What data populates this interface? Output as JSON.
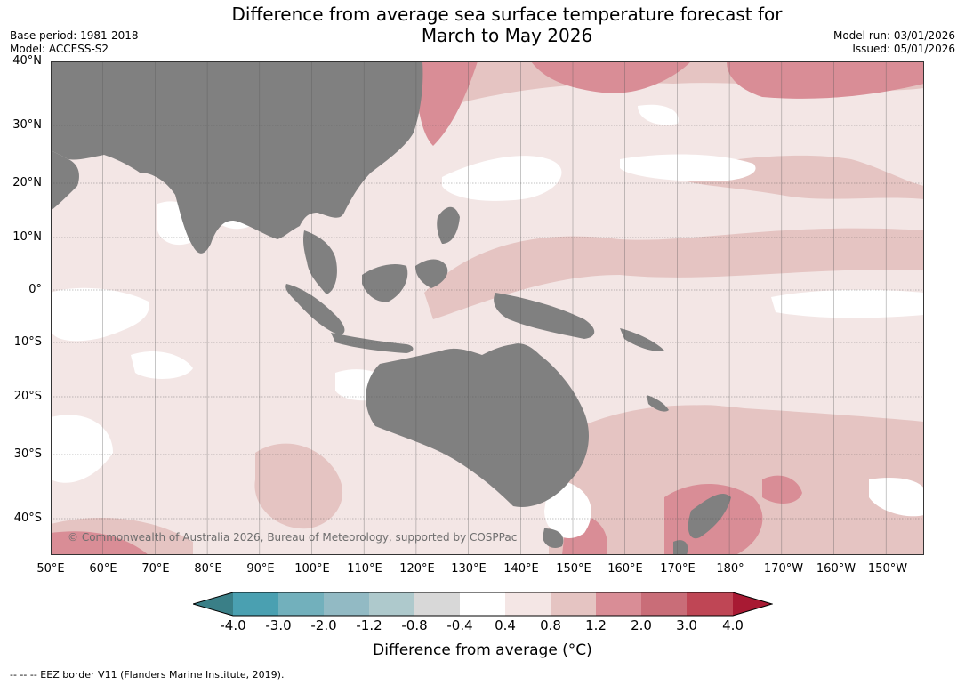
{
  "title_line1": "Difference from average sea surface temperature forecast for",
  "title_line2": "March to May 2026",
  "meta_left": {
    "base_period": "Base period: 1981-2018",
    "model": "Model: ACCESS-S2"
  },
  "meta_right": {
    "model_run": "Model run: 03/01/2026",
    "issued": "Issued: 05/01/2026"
  },
  "lat_labels": [
    "40°N",
    "30°N",
    "20°N",
    "10°N",
    "0°",
    "10°S",
    "20°S",
    "30°S",
    "40°S"
  ],
  "lon_labels": [
    "50°E",
    "60°E",
    "70°E",
    "80°E",
    "90°E",
    "100°E",
    "110°E",
    "120°E",
    "130°E",
    "140°E",
    "150°E",
    "160°E",
    "170°E",
    "180°",
    "170°W",
    "160°W",
    "150°W"
  ],
  "copyright": "© Commonwealth of Australia 2026, Bureau of Meteorology, supported by COSPPac",
  "colorbar": {
    "ticks": [
      "-4.0",
      "-3.0",
      "-2.0",
      "-1.2",
      "-0.8",
      "-0.4",
      "0.4",
      "0.8",
      "1.2",
      "2.0",
      "3.0",
      "4.0"
    ],
    "colors": [
      "#3a7f87",
      "#4aa0b1",
      "#72b0bc",
      "#92bac4",
      "#aec9cc",
      "#d8d8d8",
      "#ffffff",
      "#f4e6e5",
      "#e5c4c2",
      "#d98d96",
      "#c96d78",
      "#bf4655",
      "#a81a33"
    ],
    "title": "Difference from average (°C)"
  },
  "footnote": "--  --  -- EEZ border V11 (Flanders Marine Institute, 2019).",
  "colors": {
    "land": "#808080",
    "background_anomaly": "#f3e6e5",
    "warm_mid": "#e5c4c2",
    "warm_high": "#d98d96"
  }
}
